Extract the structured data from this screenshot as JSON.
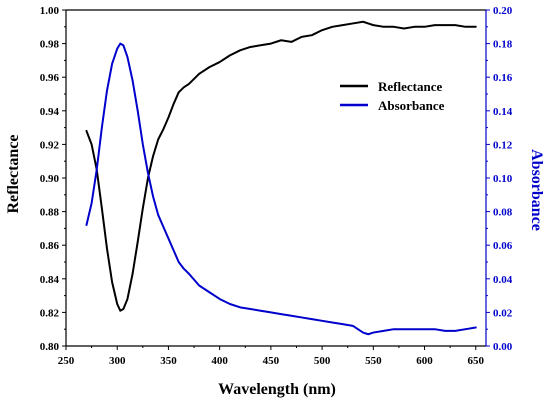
{
  "chart_data": {
    "type": "line",
    "xlabel": "Wavelength (nm)",
    "ylabel_left": "Reflectance",
    "ylabel_right": "Absorbance",
    "xlim": [
      250,
      660
    ],
    "ylim_left": [
      0.8,
      1.0
    ],
    "ylim_right": [
      0.0,
      0.2
    ],
    "x_ticks": [
      250,
      300,
      350,
      400,
      450,
      500,
      550,
      600,
      650
    ],
    "y_left_ticks": [
      "0.80",
      "0.82",
      "0.84",
      "0.86",
      "0.88",
      "0.90",
      "0.92",
      "0.94",
      "0.96",
      "0.98",
      "1.00"
    ],
    "y_right_ticks": [
      "0.00",
      "0.02",
      "0.04",
      "0.06",
      "0.08",
      "0.10",
      "0.12",
      "0.14",
      "0.16",
      "0.18",
      "0.20"
    ],
    "grid": false,
    "legend_position": "top-right",
    "colors": {
      "reflectance": "#000000",
      "absorbance": "#0000cc"
    },
    "series": [
      {
        "name": "Reflectance",
        "axis": "left",
        "x": [
          270,
          275,
          280,
          285,
          290,
          295,
          300,
          303,
          306,
          310,
          315,
          320,
          325,
          330,
          335,
          340,
          345,
          350,
          355,
          360,
          365,
          370,
          380,
          390,
          400,
          410,
          420,
          430,
          440,
          450,
          460,
          470,
          480,
          490,
          500,
          510,
          520,
          530,
          540,
          545,
          550,
          560,
          570,
          580,
          590,
          600,
          610,
          620,
          630,
          640,
          650
        ],
        "values": [
          0.928,
          0.92,
          0.905,
          0.882,
          0.858,
          0.838,
          0.825,
          0.821,
          0.822,
          0.828,
          0.843,
          0.862,
          0.882,
          0.9,
          0.913,
          0.923,
          0.929,
          0.936,
          0.944,
          0.951,
          0.954,
          0.956,
          0.962,
          0.966,
          0.969,
          0.973,
          0.976,
          0.978,
          0.979,
          0.98,
          0.982,
          0.981,
          0.984,
          0.985,
          0.988,
          0.99,
          0.991,
          0.992,
          0.993,
          0.992,
          0.991,
          0.99,
          0.99,
          0.989,
          0.99,
          0.99,
          0.991,
          0.991,
          0.991,
          0.99,
          0.99
        ]
      },
      {
        "name": "Absorbance",
        "axis": "right",
        "x": [
          270,
          275,
          280,
          285,
          290,
          295,
          300,
          303,
          306,
          310,
          315,
          320,
          325,
          330,
          335,
          340,
          345,
          350,
          355,
          360,
          365,
          370,
          380,
          390,
          400,
          410,
          420,
          430,
          440,
          450,
          460,
          470,
          480,
          490,
          500,
          510,
          520,
          530,
          540,
          545,
          550,
          560,
          570,
          580,
          590,
          600,
          610,
          620,
          630,
          640,
          650
        ],
        "values": [
          0.072,
          0.085,
          0.105,
          0.13,
          0.152,
          0.168,
          0.177,
          0.18,
          0.179,
          0.172,
          0.158,
          0.14,
          0.12,
          0.103,
          0.089,
          0.078,
          0.071,
          0.064,
          0.057,
          0.05,
          0.046,
          0.043,
          0.036,
          0.032,
          0.028,
          0.025,
          0.023,
          0.022,
          0.021,
          0.02,
          0.019,
          0.018,
          0.017,
          0.016,
          0.015,
          0.014,
          0.013,
          0.012,
          0.008,
          0.007,
          0.008,
          0.009,
          0.01,
          0.01,
          0.01,
          0.01,
          0.01,
          0.009,
          0.009,
          0.01,
          0.011
        ]
      }
    ]
  }
}
